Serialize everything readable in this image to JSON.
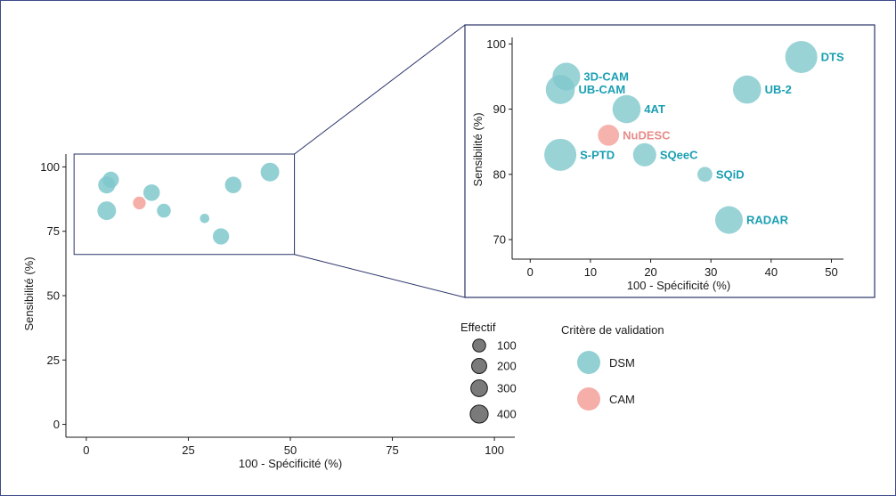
{
  "colors": {
    "DSM": "#7fc8cc",
    "CAM": "#f4a09a",
    "DSM_label": "#1a9fb2",
    "CAM_label": "#e88b88",
    "zoom_box": "#2b3468"
  },
  "chart_data": [
    {
      "id": "main",
      "type": "scatter",
      "xlabel": "100 - Spécificité (%)",
      "ylabel": "Sensibilité (%)",
      "xlim": [
        -5,
        105
      ],
      "ylim": [
        -5,
        105
      ],
      "xticks": [
        "0",
        "25",
        "50",
        "75",
        "100"
      ],
      "yticks": [
        "0",
        "25",
        "50",
        "75",
        "100"
      ],
      "zoom_region": {
        "x": [
          -3,
          51
        ],
        "y": [
          66,
          105
        ]
      },
      "points": [
        {
          "label": "DTS",
          "x": 45,
          "y": 98,
          "n": 300,
          "group": "DSM"
        },
        {
          "label": "3D-CAM",
          "x": 6,
          "y": 95,
          "n": 200,
          "group": "DSM"
        },
        {
          "label": "UB-CAM",
          "x": 5,
          "y": 93,
          "n": 230,
          "group": "DSM"
        },
        {
          "label": "UB-2",
          "x": 36,
          "y": 93,
          "n": 210,
          "group": "DSM"
        },
        {
          "label": "4AT",
          "x": 16,
          "y": 90,
          "n": 210,
          "group": "DSM"
        },
        {
          "label": "NuDESC",
          "x": 13,
          "y": 86,
          "n": 90,
          "group": "CAM"
        },
        {
          "label": "S-PTD",
          "x": 5,
          "y": 83,
          "n": 300,
          "group": "DSM"
        },
        {
          "label": "SQeeC",
          "x": 19,
          "y": 83,
          "n": 120,
          "group": "DSM"
        },
        {
          "label": "SQiD",
          "x": 29,
          "y": 80,
          "n": 25,
          "group": "DSM"
        },
        {
          "label": "RADAR",
          "x": 33,
          "y": 73,
          "n": 200,
          "group": "DSM"
        }
      ]
    },
    {
      "id": "zoom",
      "type": "scatter",
      "xlabel": "100 - Spécificité (%)",
      "ylabel": "Sensibilité (%)",
      "xlim": [
        -3,
        52
      ],
      "ylim": [
        67,
        101
      ],
      "xticks": [
        "0",
        "10",
        "20",
        "30",
        "40",
        "50"
      ],
      "yticks": [
        "70",
        "80",
        "90",
        "100"
      ]
    }
  ],
  "legend_size": {
    "title": "Effectif",
    "items": [
      {
        "label": "100",
        "n": 100
      },
      {
        "label": "200",
        "n": 200
      },
      {
        "label": "300",
        "n": 300
      },
      {
        "label": "400",
        "n": 400
      }
    ]
  },
  "legend_color": {
    "title": "Critère de validation",
    "items": [
      {
        "label": "DSM",
        "group": "DSM"
      },
      {
        "label": "CAM",
        "group": "CAM"
      }
    ]
  }
}
